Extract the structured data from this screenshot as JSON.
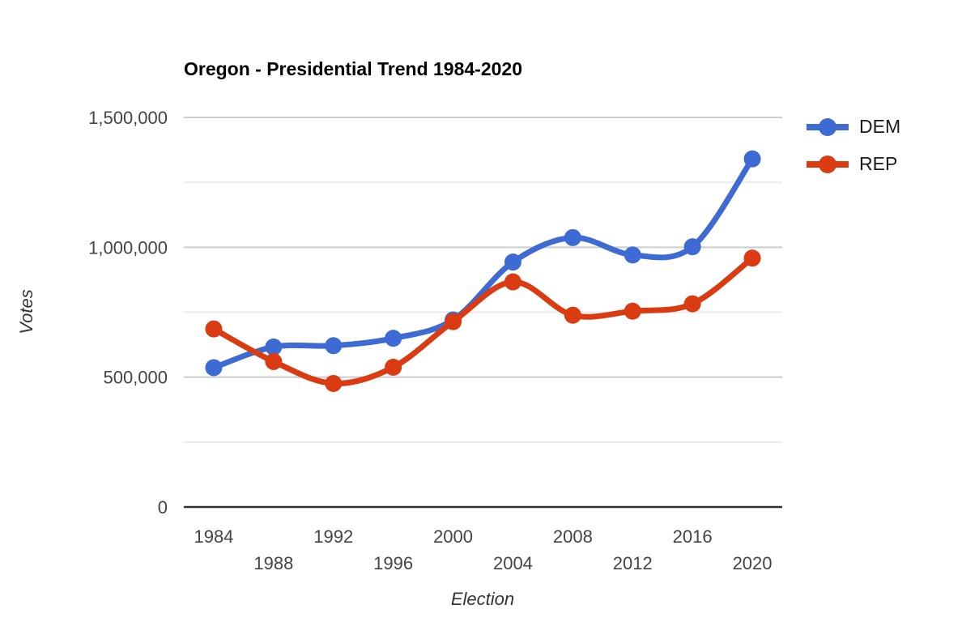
{
  "page": {
    "background": "#ffffff"
  },
  "chart_data": {
    "type": "line",
    "title": "Oregon - Presidential Trend 1984-2020",
    "xlabel": "Election",
    "ylabel": "Votes",
    "x": [
      1984,
      1988,
      1992,
      1996,
      2000,
      2004,
      2008,
      2012,
      2016,
      2020
    ],
    "series": [
      {
        "name": "DEM",
        "color": "#3D6BD3",
        "values": [
          536479,
          616206,
          621314,
          649641,
          720342,
          943163,
          1037291,
          970488,
          1002106,
          1340383
        ]
      },
      {
        "name": "REP",
        "color": "#DB3B13",
        "values": [
          685700,
          560126,
          475757,
          538152,
          713577,
          866831,
          738475,
          754175,
          782403,
          958448
        ]
      }
    ],
    "ylim": [
      0,
      1500000
    ],
    "y_major_ticks": [
      {
        "value": 0,
        "label": "0"
      },
      {
        "value": 500000,
        "label": "500,000"
      },
      {
        "value": 1000000,
        "label": "1,000,000"
      },
      {
        "value": 1500000,
        "label": "1,500,000"
      }
    ],
    "y_minor_tick_values": [
      250000,
      750000,
      1250000
    ],
    "smooth": true,
    "grid": true,
    "legend_position": "right",
    "marker": "circle",
    "style": {
      "grid_major_color": "#cccccc",
      "grid_minor_color": "#ebebeb",
      "axis_line_color": "#333333",
      "tick_label_color": "#444444",
      "title_color": "#000000"
    }
  }
}
